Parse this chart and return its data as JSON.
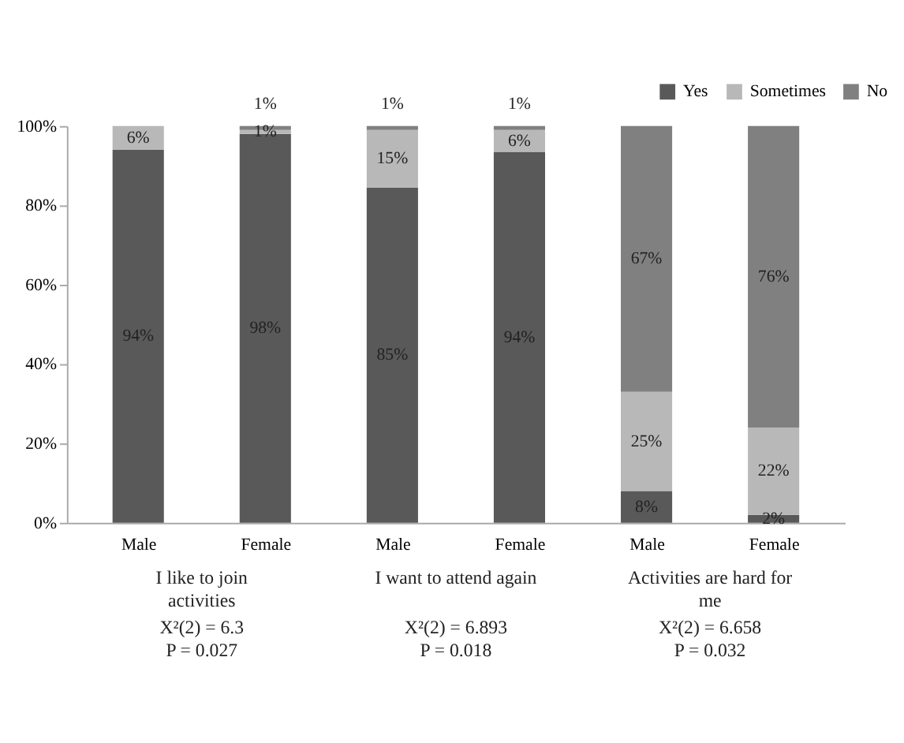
{
  "chart_data": {
    "type": "bar",
    "stacked": true,
    "categories": [
      "Male",
      "Female",
      "Male",
      "Female",
      "Male",
      "Female"
    ],
    "series": [
      {
        "name": "Yes",
        "color": "#595959",
        "values": [
          94,
          98,
          84.5,
          93.5,
          8,
          2
        ],
        "value_labels": [
          "94%",
          "98%",
          "85%",
          "94%",
          "8%",
          "2%"
        ]
      },
      {
        "name": "Sometimes",
        "color": "#b8b8b8",
        "values": [
          6,
          1,
          14.5,
          5.5,
          25,
          22
        ],
        "value_labels": [
          "6%",
          "1%",
          "15%",
          "6%",
          "25%",
          "22%"
        ]
      },
      {
        "name": "No",
        "color": "#808080",
        "values": [
          0,
          1,
          1,
          1,
          67,
          76
        ],
        "value_labels": [
          null,
          "1%",
          "1%",
          "1%",
          "67%",
          "76%"
        ]
      }
    ],
    "ylim": [
      0,
      100
    ],
    "yticks": [
      {
        "value": 0,
        "label": "0%"
      },
      {
        "value": 20,
        "label": "20%"
      },
      {
        "value": 40,
        "label": "40%"
      },
      {
        "value": 60,
        "label": "60%"
      },
      {
        "value": 80,
        "label": "80%"
      },
      {
        "value": 100,
        "label": "100%"
      }
    ],
    "grid": false,
    "legend": "top right",
    "annotations": [
      "I like to join activities",
      "I want to attend again",
      "Activities are hard for me",
      "Χ²(2) = 6.3\nP = 0.027",
      "Χ²(2) = 6.893\nP = 0.018",
      "Χ²(2) = 6.658\nP = 0.032"
    ]
  }
}
